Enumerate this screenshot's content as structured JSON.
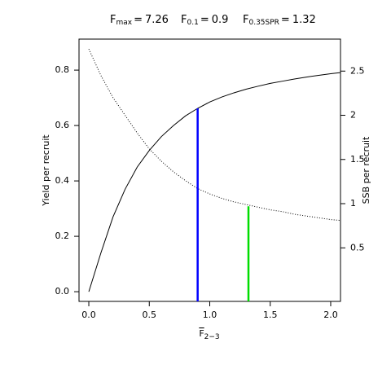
{
  "chart_data": {
    "type": "line",
    "title_items": [
      {
        "symbol": "F",
        "subscript": "max",
        "sign": "=",
        "value": 7.26
      },
      {
        "symbol": "F",
        "subscript": "0.1",
        "sign": "=",
        "value": 0.9,
        "color": "#0000ff",
        "top": 0.662,
        "axis": "y"
      },
      {
        "symbol": "F",
        "subscript": "0.35SPR",
        "sign": "=",
        "value": 1.32,
        "color": "#00dd00",
        "top": 0.97,
        "axis": "y2"
      }
    ],
    "x_label": {
      "symbol": "F",
      "subscript": "2−3"
    },
    "y_label": "Yield per recruit",
    "y2_label": "SSB per recruit",
    "x": [
      0,
      0.1,
      0.2,
      0.3,
      0.4,
      0.5,
      0.6,
      0.7,
      0.8,
      0.9,
      1.0,
      1.1,
      1.2,
      1.3,
      1.4,
      1.5,
      1.6,
      1.7,
      1.8,
      1.9,
      2.0,
      2.08
    ],
    "series": [
      {
        "color": "#000000",
        "style": "solid",
        "axis": "y",
        "values": [
          0,
          0.14,
          0.27,
          0.37,
          0.45,
          0.51,
          0.56,
          0.6,
          0.635,
          0.662,
          0.685,
          0.703,
          0.718,
          0.731,
          0.742,
          0.752,
          0.76,
          0.768,
          0.775,
          0.781,
          0.787,
          0.791
        ]
      },
      {
        "color": "#000000",
        "style": "dotted",
        "axis": "y2",
        "values": [
          2.75,
          2.45,
          2.2,
          2.0,
          1.8,
          1.62,
          1.48,
          1.36,
          1.26,
          1.17,
          1.11,
          1.06,
          1.02,
          0.99,
          0.96,
          0.93,
          0.91,
          0.88,
          0.86,
          0.84,
          0.82,
          0.81
        ]
      }
    ],
    "xlim": [
      -0.081,
      2.081
    ],
    "xticks": [
      {
        "value": 0,
        "label": "0.0"
      },
      0.5,
      {
        "value": 1,
        "label": "1.0"
      },
      1.5,
      {
        "value": 2,
        "label": "2.0"
      }
    ],
    "ylim": [
      -0.035,
      0.912
    ],
    "yticks": [
      {
        "value": 0,
        "label": "0.0"
      },
      0.2,
      0.4,
      0.6,
      0.8
    ],
    "y2lim": [
      -0.106,
      2.862
    ],
    "y2ticks": [
      0.5,
      1,
      1.5,
      2,
      2.5
    ]
  }
}
